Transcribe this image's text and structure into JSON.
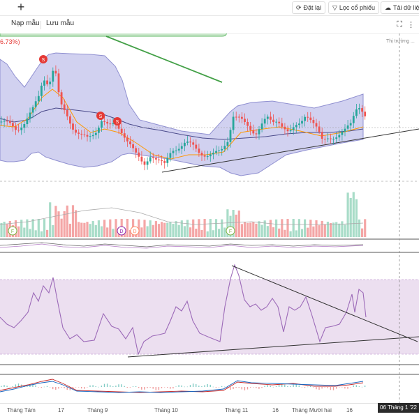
{
  "topbar": {
    "add_tab_label": "+",
    "reset_label": "Đặt lại",
    "filter_label": "Lọc cổ phiếu",
    "download_label": "Tải dữ liệ"
  },
  "toolbar": {
    "load_template_label": "Nạp mẫu",
    "save_template_label": "Lưu mẫu"
  },
  "chart": {
    "change_pct_label": "6.73%)",
    "market_label": "Thị trường ..."
  },
  "xaxis": {
    "labels": [
      "Tháng Tám",
      "17",
      "Tháng 9",
      "Tháng 10",
      "Tháng 11",
      "16",
      "Tháng Mười hai",
      "16"
    ],
    "crosshair_date": "06 Tháng 1 '22"
  },
  "colors": {
    "up": "#26a69a",
    "down": "#ef5350",
    "bb_fill": "#ccccee",
    "bb_line": "#7e7ec8",
    "rsi_fill": "#ecdff0",
    "rsi_line": "#9c6ab8",
    "trend_green": "#43a047"
  },
  "markers": {
    "s_label": "S",
    "f_label": "F",
    "d_label": "D"
  }
}
